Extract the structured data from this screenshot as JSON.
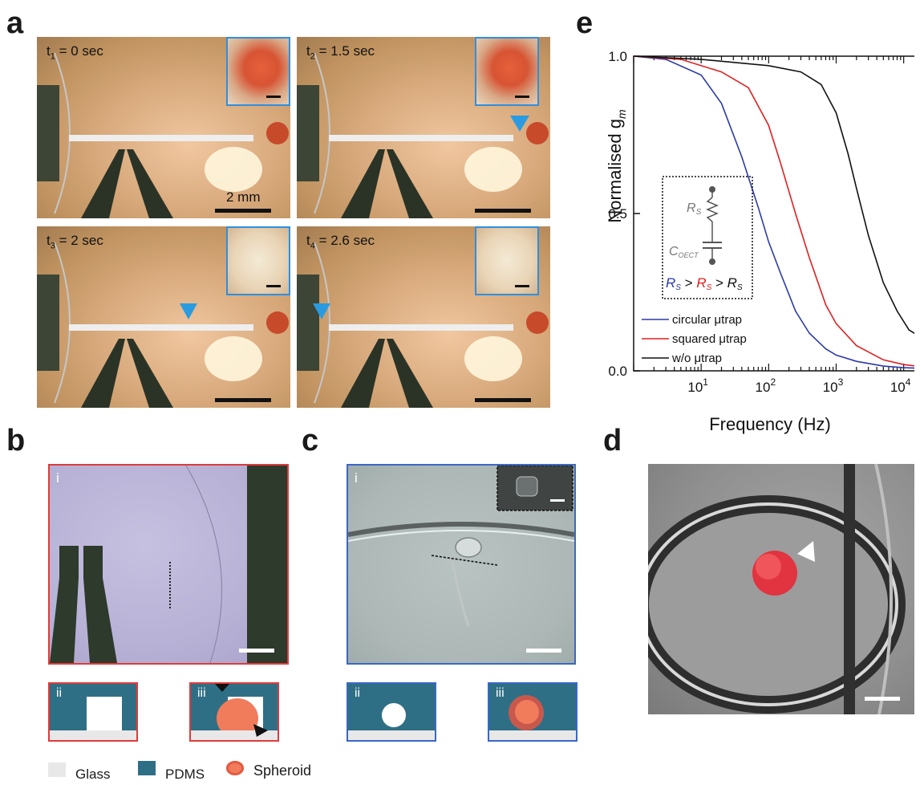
{
  "panels": {
    "a": "a",
    "b": "b",
    "c": "c",
    "d": "d",
    "e": "e"
  },
  "panel_a": {
    "frames": [
      {
        "t": "t",
        "sub": "1",
        "value": " = 0 sec"
      },
      {
        "t": "t",
        "sub": "2",
        "value": " = 1.5 sec"
      },
      {
        "t": "t",
        "sub": "3",
        "value": " = 2 sec"
      },
      {
        "t": "t",
        "sub": "4",
        "value": " = 2.6 sec"
      }
    ],
    "scale_label": "2 mm"
  },
  "panel_b": {
    "sub_i": "i",
    "sub_ii": "ii",
    "sub_iii": "iii"
  },
  "panel_c": {
    "sub_i": "i",
    "sub_ii": "ii",
    "sub_iii": "iii"
  },
  "legend": {
    "glass": "Glass",
    "pdms": "PDMS",
    "spheroid": "Spheroid"
  },
  "colors": {
    "pdms": "#2f6f85",
    "glass": "#e8e8e8",
    "spheroid": "#f07c5c",
    "inset_border": "#2f8fde",
    "panel_b_border": "#e03b3b",
    "panel_c_border": "#3a68c4",
    "circular": "#2b3aa8",
    "squared": "#e02020",
    "without": "#111111"
  },
  "chart_data": {
    "type": "line",
    "ylabel": "Normalised g",
    "ylabel_sub": "m",
    "xlabel": "Frequency (Hz)",
    "x_scale": "log",
    "xlim": [
      1,
      20000
    ],
    "ylim": [
      0,
      1
    ],
    "yticks": [
      "0.0",
      "0.5",
      "1.0"
    ],
    "xticks": [
      {
        "base": "10",
        "exp": "1"
      },
      {
        "base": "10",
        "exp": "2"
      },
      {
        "base": "10",
        "exp": "3"
      },
      {
        "base": "10",
        "exp": "4"
      }
    ],
    "series": [
      {
        "name": "circular μtrap",
        "color": "#2b3aa8",
        "x": [
          1,
          3,
          10,
          20,
          40,
          70,
          100,
          150,
          250,
          400,
          700,
          1000,
          2000,
          5000,
          10000,
          20000
        ],
        "y": [
          1.0,
          0.99,
          0.94,
          0.85,
          0.68,
          0.52,
          0.41,
          0.31,
          0.19,
          0.12,
          0.07,
          0.05,
          0.03,
          0.015,
          0.01,
          0.008
        ]
      },
      {
        "name": "squared μtrap",
        "color": "#e02020",
        "x": [
          1,
          5,
          20,
          50,
          100,
          150,
          250,
          400,
          700,
          1000,
          2000,
          5000,
          10000,
          20000
        ],
        "y": [
          1.0,
          0.99,
          0.95,
          0.9,
          0.78,
          0.66,
          0.5,
          0.36,
          0.21,
          0.15,
          0.08,
          0.035,
          0.02,
          0.012
        ]
      },
      {
        "name": "w/o μtrap",
        "color": "#111111",
        "x": [
          1,
          10,
          100,
          300,
          600,
          1000,
          1500,
          2000,
          3000,
          5000,
          8000,
          12000,
          20000
        ],
        "y": [
          1.0,
          0.99,
          0.97,
          0.95,
          0.91,
          0.82,
          0.69,
          0.58,
          0.43,
          0.28,
          0.19,
          0.13,
          0.1
        ]
      }
    ],
    "legend_position": "bottom-left",
    "inset": {
      "rs": "R",
      "rs_sub": "S",
      "coect": "C",
      "coect_sub": "OECT",
      "relation_sep": " > "
    }
  }
}
